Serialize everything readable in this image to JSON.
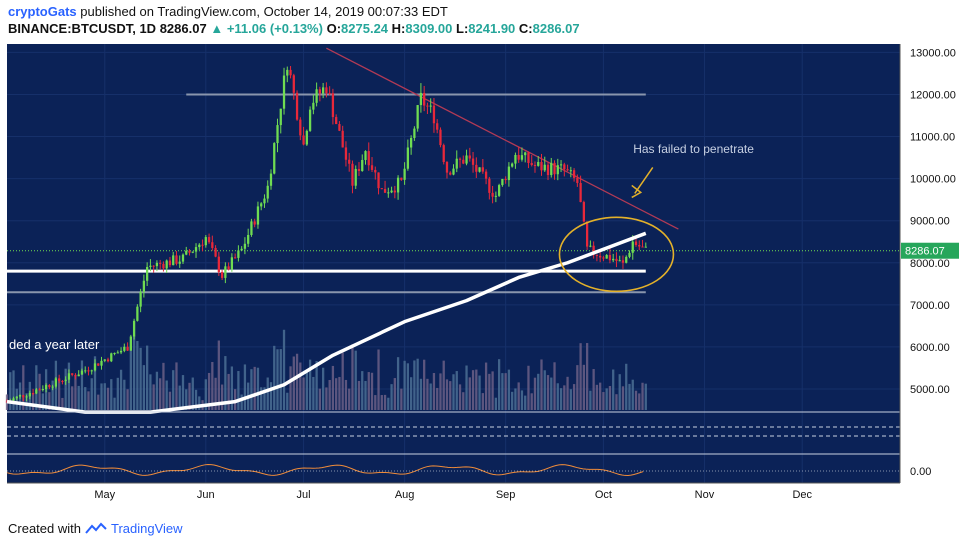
{
  "header": {
    "publisher": "cryptoGats",
    "published_text": "published on TradingView.com, October 14, 2019 00:07:33 EDT",
    "symbol": "BINANCE:BTCUSDT, 1D",
    "last": "8286.07",
    "change": "+11.06 (+0.13%)",
    "o_label": "O:",
    "o": "8275.24",
    "h_label": "H:",
    "h": "8309.00",
    "l_label": "L:",
    "l": "8241.90",
    "c_label": "C:",
    "c": "8286.07"
  },
  "footer": {
    "created_with": "Created with",
    "brand": "TradingView"
  },
  "colors": {
    "background": "#0b2257",
    "bull": "#6fdc52",
    "bear": "#e8283a",
    "annotation": "#e3b12a",
    "grid": "#16306a"
  },
  "chart_data": {
    "type": "candlestick",
    "y_axis": {
      "ticks": [
        5000,
        6000,
        7000,
        8000,
        9000,
        10000,
        11000,
        12000,
        13000
      ],
      "tick_labels": [
        "5000.00",
        "6000.00",
        "7000.00",
        "8000.00",
        "9000.00",
        "10000.00",
        "11000.00",
        "12000.00",
        "13000.00"
      ],
      "range": [
        4500,
        13200
      ]
    },
    "x_axis": {
      "labels": [
        "May",
        "Jun",
        "Jul",
        "Aug",
        "Sep",
        "Oct",
        "Nov",
        "Dec"
      ],
      "label_dates": [
        "2019-05-01",
        "2019-06-01",
        "2019-07-01",
        "2019-08-01",
        "2019-09-01",
        "2019-10-01",
        "2019-11-01",
        "2019-12-01"
      ],
      "range": [
        "2019-04-01",
        "2019-12-31"
      ]
    },
    "price_marker": "8286.07",
    "anchor_path": [
      [
        "2019-04-01",
        4700
      ],
      [
        "2019-04-25",
        5450
      ],
      [
        "2019-05-08",
        6000
      ],
      [
        "2019-05-14",
        7900
      ],
      [
        "2019-05-25",
        8100
      ],
      [
        "2019-06-01",
        8600
      ],
      [
        "2019-06-06",
        7700
      ],
      [
        "2019-06-12",
        8300
      ],
      [
        "2019-06-20",
        9800
      ],
      [
        "2019-06-26",
        12800
      ],
      [
        "2019-07-01",
        10800
      ],
      [
        "2019-07-03",
        11800
      ],
      [
        "2019-07-08",
        12200
      ],
      [
        "2019-07-16",
        9900
      ],
      [
        "2019-07-20",
        10700
      ],
      [
        "2019-07-25",
        9700
      ],
      [
        "2019-07-31",
        9900
      ],
      [
        "2019-08-06",
        11900
      ],
      [
        "2019-08-10",
        11500
      ],
      [
        "2019-08-14",
        10200
      ],
      [
        "2019-08-20",
        10500
      ],
      [
        "2019-08-29",
        9600
      ],
      [
        "2019-09-04",
        10600
      ],
      [
        "2019-09-10",
        10300
      ],
      [
        "2019-09-19",
        10200
      ],
      [
        "2019-09-23",
        9900
      ],
      [
        "2019-09-26",
        8300
      ],
      [
        "2019-10-04",
        8100
      ],
      [
        "2019-10-07",
        7950
      ],
      [
        "2019-10-10",
        8500
      ],
      [
        "2019-10-14",
        8286
      ]
    ],
    "white_curve": [
      [
        "2019-04-01",
        4700
      ],
      [
        "2019-04-25",
        4450
      ],
      [
        "2019-05-15",
        4450
      ],
      [
        "2019-06-10",
        4700
      ],
      [
        "2019-06-25",
        5100
      ],
      [
        "2019-07-10",
        5800
      ],
      [
        "2019-08-01",
        6600
      ],
      [
        "2019-08-20",
        7100
      ],
      [
        "2019-09-05",
        7650
      ],
      [
        "2019-09-20",
        8000
      ],
      [
        "2019-10-14",
        8700
      ]
    ],
    "horizontal_lines": [
      {
        "y": 12000,
        "from": "2019-05-26",
        "to": "2019-10-14"
      },
      {
        "y": 7800,
        "from": "2019-04-01",
        "to": "2019-10-14"
      },
      {
        "y": 7300,
        "from": "2019-04-01",
        "to": "2019-10-14"
      }
    ],
    "trendline": [
      [
        "2019-07-08",
        13100
      ],
      [
        "2019-10-24",
        8800
      ]
    ],
    "annotations": [
      {
        "text": "Has failed to penetrate",
        "x": "2019-10-04",
        "y": 10700
      },
      {
        "text": "ded a year later",
        "x": "2019-04-01",
        "y": 6050
      }
    ],
    "oscillator": {
      "ticks": [
        0
      ],
      "tick_labels": [
        "0.00"
      ]
    }
  }
}
